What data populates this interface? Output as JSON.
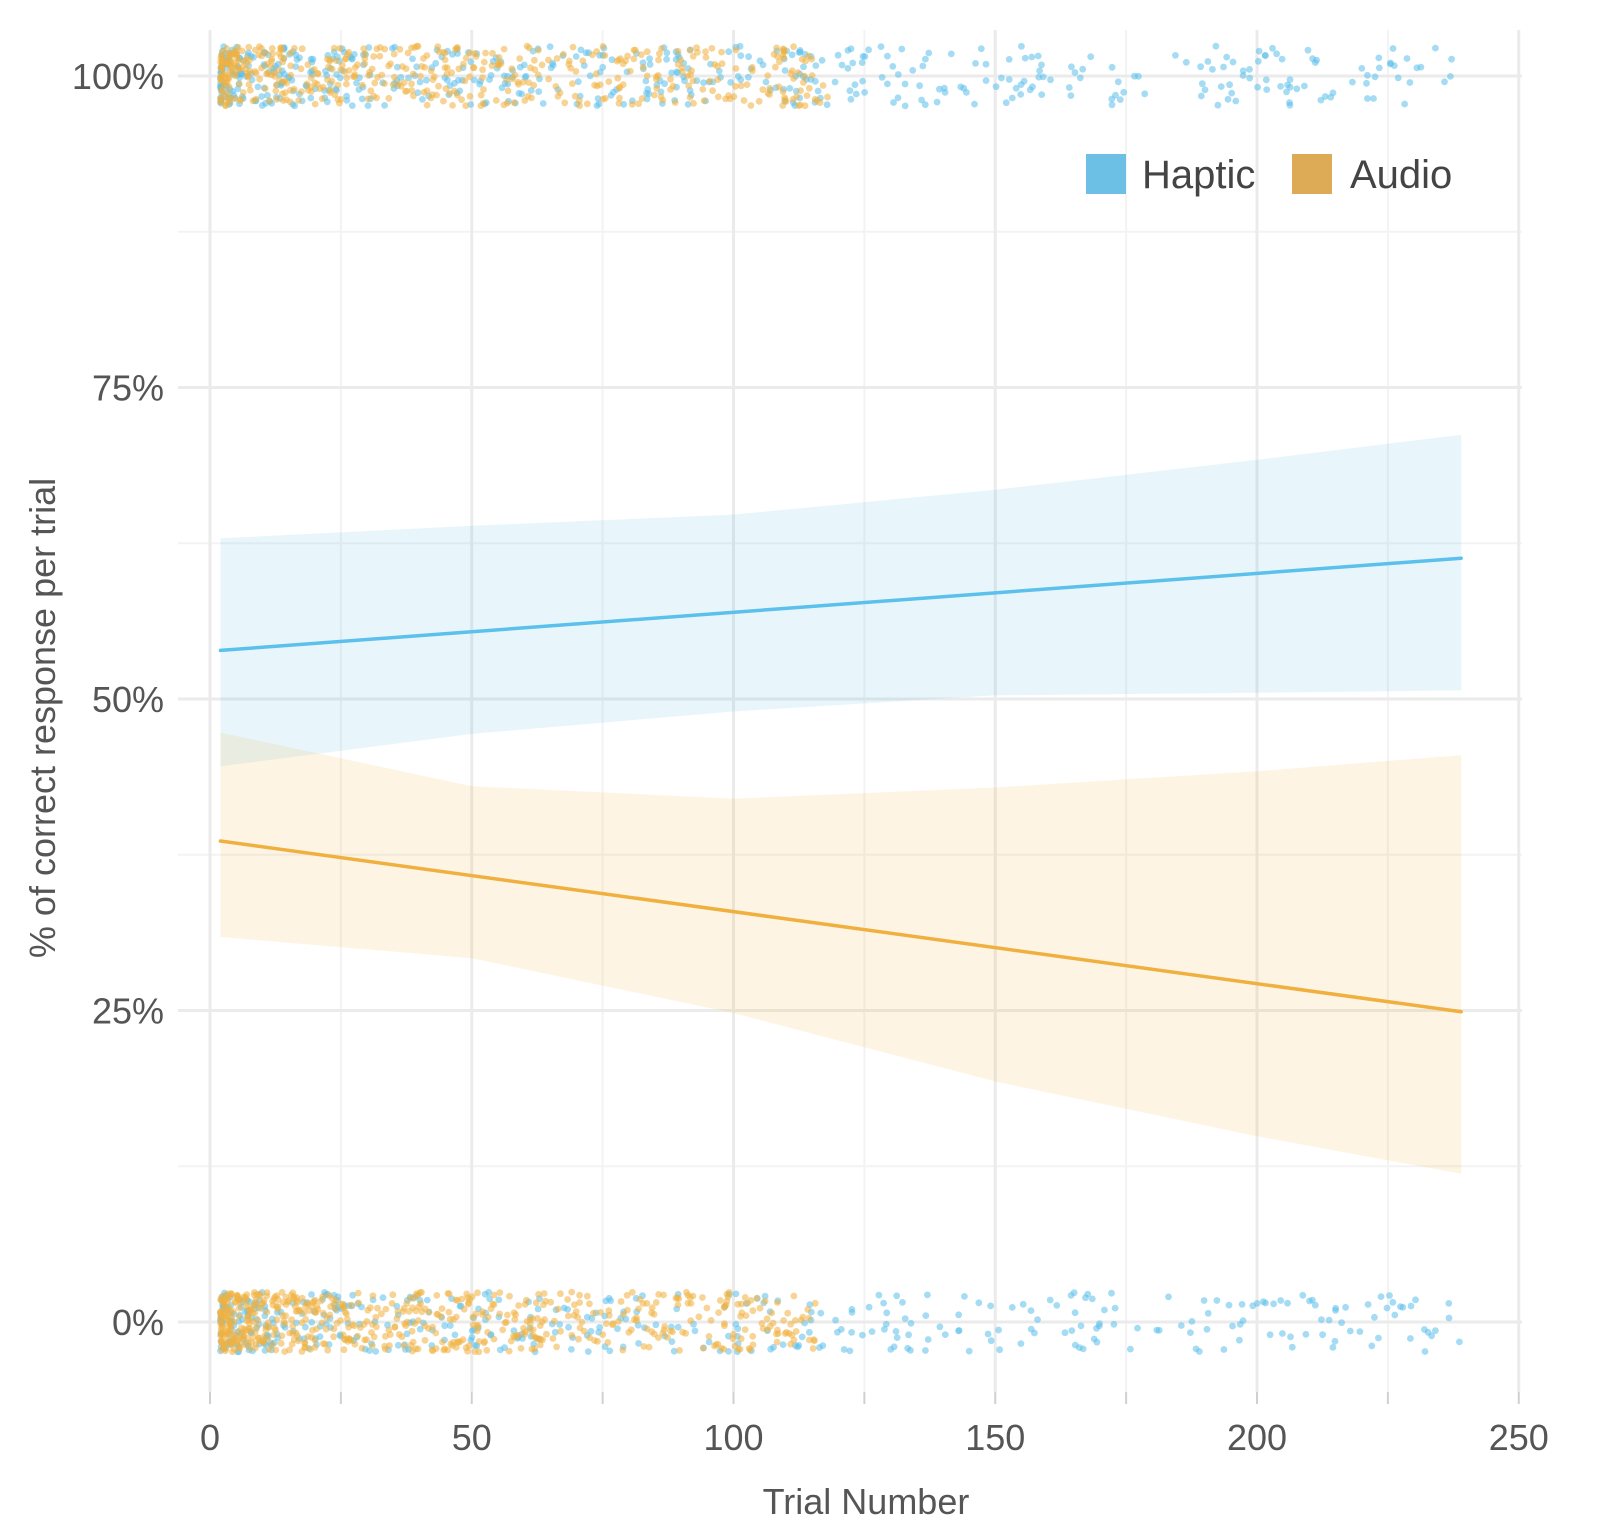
{
  "chart_data": {
    "type": "scatter",
    "title": "",
    "xlabel": "Trial Number",
    "ylabel": "% of correct response per trial",
    "xlim": [
      -2,
      250
    ],
    "ylim": [
      -5,
      104
    ],
    "x_ticks": [
      0,
      50,
      100,
      150,
      200,
      250
    ],
    "x_tick_labels": [
      "0",
      "50",
      "100",
      "150",
      "200",
      "250"
    ],
    "y_ticks": [
      0,
      25,
      50,
      75,
      100
    ],
    "y_tick_labels": [
      "0%",
      "25%",
      "50%",
      "75%",
      "100%"
    ],
    "grid": true,
    "legend_position": "top-right",
    "series": [
      {
        "name": "Haptic",
        "color": "#5BC0EB",
        "swatch_color": "#6CC0E5",
        "trend_line": {
          "x": [
            2,
            239
          ],
          "y": [
            53.9,
            61.3
          ]
        },
        "confidence_band": {
          "x": [
            2,
            50,
            100,
            150,
            200,
            239
          ],
          "upper": [
            62.9,
            63.9,
            64.8,
            66.8,
            69.2,
            71.2
          ],
          "lower": [
            44.6,
            47.2,
            49.0,
            50.3,
            50.5,
            50.7
          ]
        },
        "points_correct_x_range": [
          2,
          239
        ],
        "points_incorrect_x_range": [
          2,
          239
        ]
      },
      {
        "name": "Audio",
        "color": "#F0B040",
        "swatch_color": "#DDAA55",
        "trend_line": {
          "x": [
            2,
            239
          ],
          "y": [
            38.6,
            24.9
          ]
        },
        "confidence_band": {
          "x": [
            2,
            50,
            100,
            150,
            200,
            239
          ],
          "upper": [
            47.3,
            43.0,
            42.0,
            42.9,
            44.2,
            45.5
          ],
          "lower": [
            30.9,
            29.2,
            24.8,
            19.3,
            14.9,
            11.9
          ]
        },
        "points_correct_x_range": [
          2,
          118
        ],
        "points_incorrect_x_range": [
          2,
          116
        ]
      }
    ]
  }
}
